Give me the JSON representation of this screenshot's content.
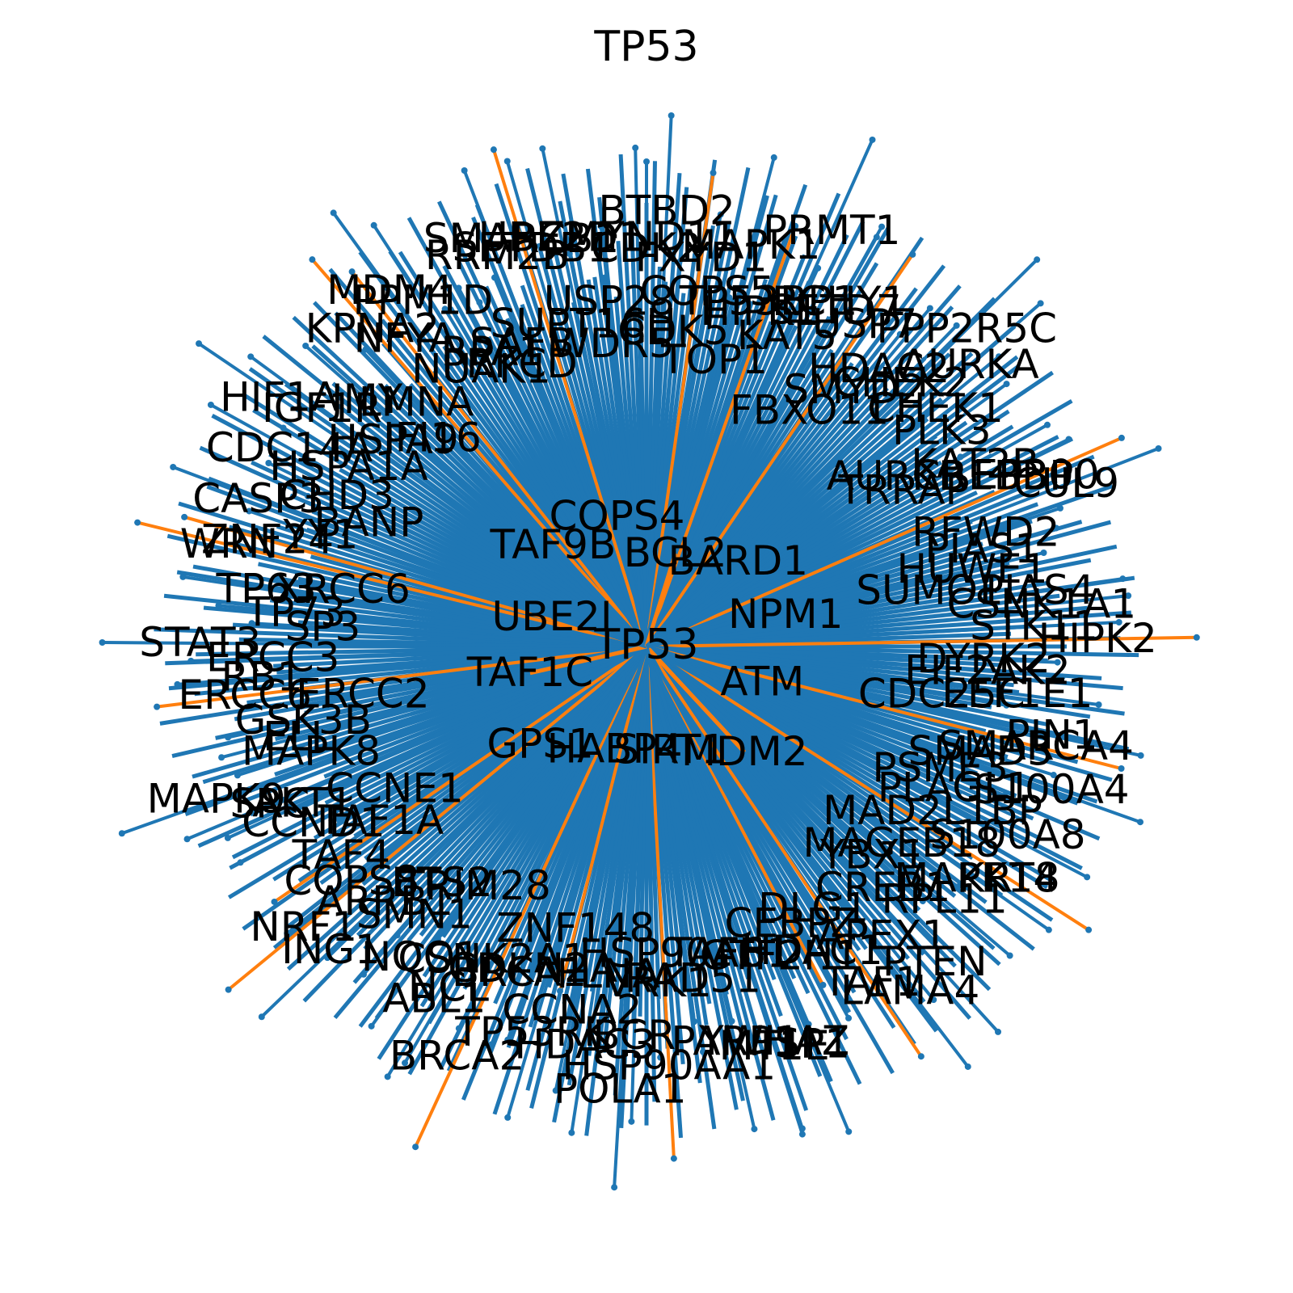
{
  "title": "TP53",
  "colors": {
    "edge_default": "#1f77b4",
    "edge_highlight": "#ff7f0e",
    "background": "#ffffff",
    "text": "#000000"
  },
  "network": {
    "center": "TP53",
    "inner_nodes": [
      "ATM",
      "MDM2",
      "SIRT1",
      "HABP4",
      "GPS1",
      "TAF1C",
      "UBE2I",
      "TAF9B",
      "COPS4",
      "BCL2",
      "BARD1",
      "NPM1"
    ],
    "nodes": [
      "CDK2",
      "BTBD2",
      "CDK5",
      "FXYD1",
      "COPS5",
      "TOP1",
      "MAPK1",
      "HIPK1",
      "TP53BP1",
      "PRMT1",
      "KAT5",
      "SETD7",
      "RCHY1",
      "FBXO11",
      "USP7",
      "HDAC2",
      "SMYD2",
      "PPP2R5C",
      "CHEK2",
      "CHEK1",
      "AURKA",
      "AURKB",
      "PLK3",
      "KAT2B",
      "TRRAP",
      "EP300",
      "CREBBP",
      "RFWD2",
      "CUL9",
      "HUWE1",
      "PIAS1",
      "PIAS4",
      "SUMO1",
      "STK11",
      "CSNK1A1",
      "DYRK2",
      "HIPK2",
      "EEF1E1",
      "EIF2AK2",
      "PIN1",
      "CDC25C",
      "SMAD3",
      "SMARCA4",
      "PSME3",
      "S100A4",
      "S100A8",
      "PLAGL1",
      "KRT8",
      "MAD2L1BP",
      "MAGEB18",
      "MAPK14",
      "YBX1",
      "RPL11",
      "PTEN",
      "CREB1",
      "LAMA4",
      "APEX1",
      "DLG1",
      "TAF1",
      "CEBPZ",
      "HDAC1",
      "SP1",
      "GTF2H1",
      "MT1E",
      "YWHAZ",
      "TAF6",
      "PARP1",
      "RAD51",
      "HSP90AB1",
      "HSP90AA1",
      "VRK1",
      "BCR",
      "POLA1",
      "FLNA",
      "HDAC3",
      "CCNA2",
      "ZNF148",
      "TP53RK",
      "CDKN2A",
      "BRCA1",
      "BRCA2",
      "CSNK2A1",
      "NCL",
      "ABL1",
      "TRIM28",
      "NQO1",
      "SMN1",
      "ETS2",
      "ING1",
      "ARRB1",
      "COPS8",
      "NRF1",
      "TAF1A",
      "TAF4",
      "CCND1",
      "CCNE1",
      "SRC",
      "AKT1",
      "MAPK8",
      "MAPK9",
      "GSK3B",
      "ELL",
      "ERCC6",
      "ERCC2",
      "ERCC3",
      "RB1",
      "SP3",
      "STAT3",
      "TP63",
      "TP73",
      "WRN",
      "XRCC6",
      "YY1",
      "ZNF24",
      "BANP",
      "CASP3",
      "CDC14A",
      "CHD3",
      "HIF1A",
      "HSPA1A",
      "HSPA9",
      "IGF1R",
      "IFI16",
      "JMY",
      "KPNA2",
      "LMNA",
      "MDM4",
      "NFYA",
      "NUAK1",
      "PPM1D",
      "PRKCD",
      "RPA1",
      "RRM2B",
      "SAFB",
      "SETDB1",
      "SMARCB1",
      "SUPT16H",
      "UBE2D1",
      "USP28",
      "WDR5",
      "ZMYND11"
    ]
  }
}
